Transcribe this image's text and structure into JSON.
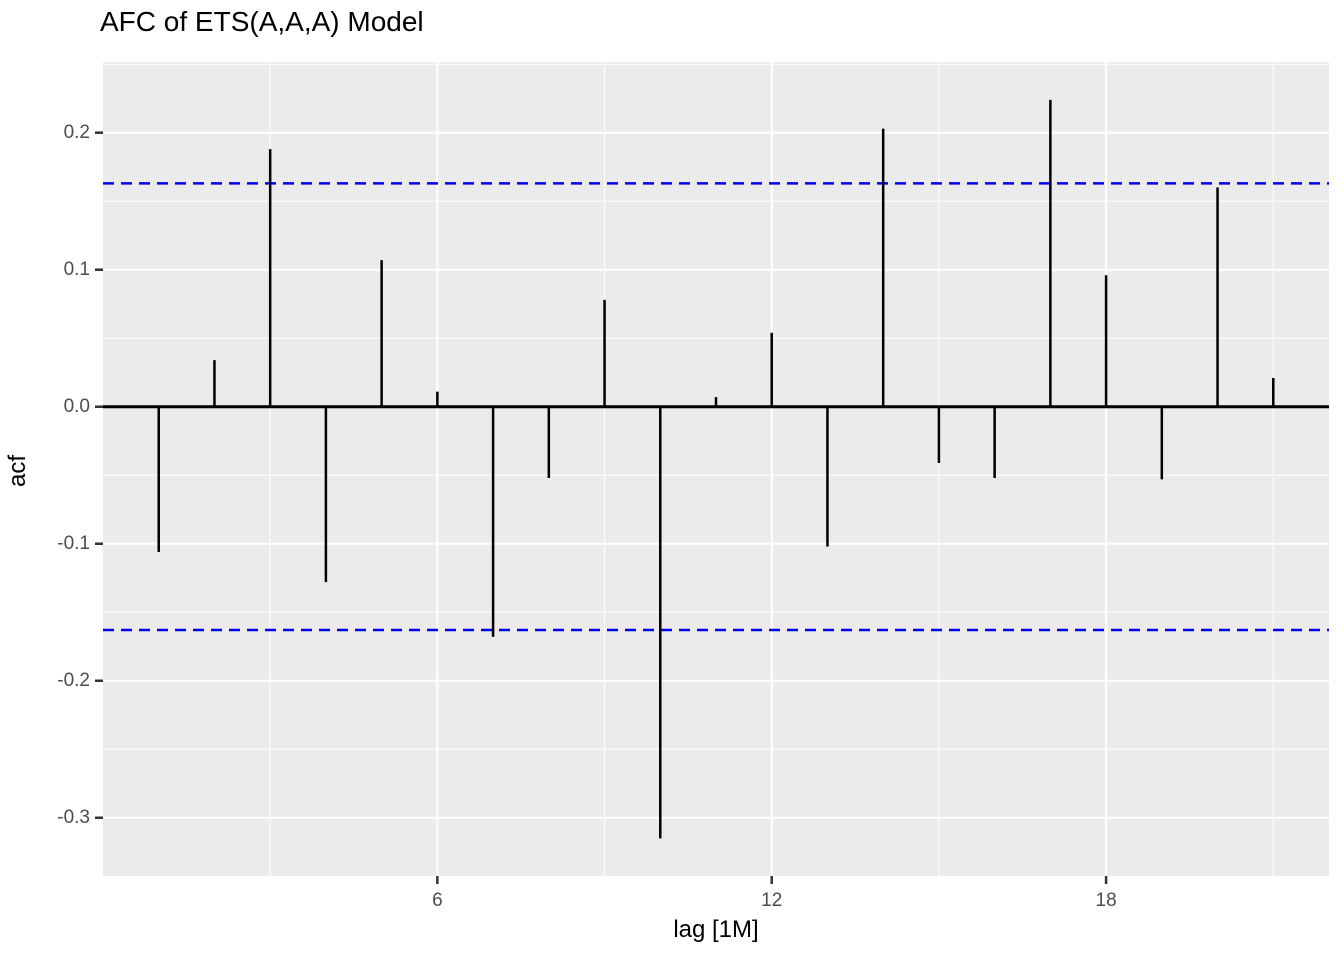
{
  "title": "AFC of ETS(A,A,A) Model",
  "chart_data": {
    "type": "bar",
    "subtype": "acf-stem-plot",
    "title": "AFC of ETS(A,A,A) Model",
    "xlabel": "lag [1M]",
    "ylabel": "acf",
    "x": [
      1,
      2,
      3,
      4,
      5,
      6,
      7,
      8,
      9,
      10,
      11,
      12,
      13,
      14,
      15,
      16,
      17,
      18,
      19,
      20,
      21
    ],
    "values": [
      -0.106,
      0.034,
      0.188,
      -0.128,
      0.107,
      0.011,
      -0.168,
      -0.052,
      0.078,
      -0.315,
      0.007,
      0.054,
      -0.102,
      0.203,
      -0.041,
      -0.052,
      0.224,
      0.096,
      -0.053,
      0.16,
      0.021
    ],
    "confidence_bounds": {
      "upper": 0.163,
      "lower": -0.163,
      "line_style": "dashed"
    },
    "xlim": [
      0,
      22
    ],
    "ylim": [
      -0.3425,
      0.2516
    ],
    "x_ticks": [
      6,
      12,
      18
    ],
    "x_tick_labels": [
      "6",
      "12",
      "18"
    ],
    "x_minor_gridlines": [
      3,
      9,
      15,
      21
    ],
    "y_ticks": [
      0.2,
      0.1,
      0.0,
      -0.1,
      -0.2,
      -0.3
    ],
    "y_tick_labels": [
      "0.2",
      "0.1",
      "0.0",
      "-0.1",
      "-0.2",
      "-0.3"
    ],
    "y_minor_gridlines": [
      0.25,
      0.15,
      0.05,
      -0.05,
      -0.15,
      -0.25
    ],
    "grid": true,
    "legend": null,
    "colors": {
      "panel_background": "#EBEBEB",
      "grid_major": "#FFFFFF",
      "grid_minor": "#FFFFFF",
      "bar": "#000000",
      "zero_line": "#000000",
      "confidence_line": "#0000EE",
      "axis_tick": "#333333",
      "tick_label": "#4D4D4D",
      "title_text": "#000000"
    }
  }
}
